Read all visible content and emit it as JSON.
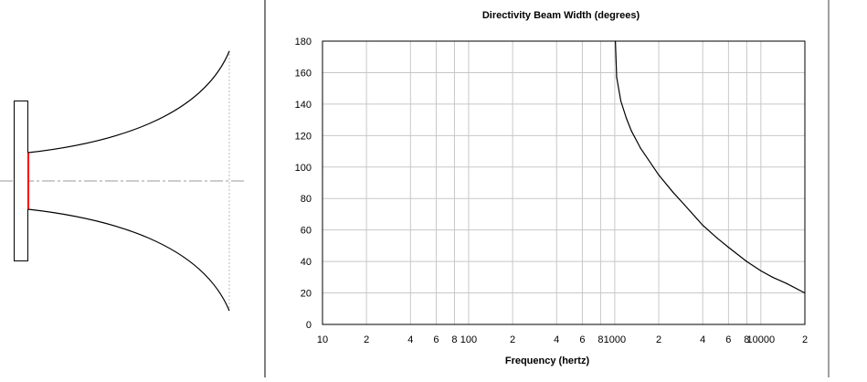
{
  "horn_diagram": {
    "throat_color": "#ff0000",
    "profile_color": "#000000",
    "axis_color": "#999999"
  },
  "chart_data": {
    "type": "line",
    "title": "Directivity Beam Width (degrees)",
    "xlabel": "Frequency (hertz)",
    "ylabel": "",
    "x_scale": "log",
    "xlim": [
      10,
      20000
    ],
    "ylim": [
      0,
      180
    ],
    "y_ticks": [
      "180",
      "160",
      "140",
      "120",
      "100",
      "80",
      "60",
      "40",
      "20",
      "0"
    ],
    "x_ticks": [
      {
        "value": 10,
        "label": "10"
      },
      {
        "value": 20,
        "label": "2"
      },
      {
        "value": 40,
        "label": "4"
      },
      {
        "value": 60,
        "label": "6"
      },
      {
        "value": 80,
        "label": "8"
      },
      {
        "value": 100,
        "label": "100"
      },
      {
        "value": 200,
        "label": "2"
      },
      {
        "value": 400,
        "label": "4"
      },
      {
        "value": 600,
        "label": "6"
      },
      {
        "value": 800,
        "label": "8"
      },
      {
        "value": 1000,
        "label": "1000"
      },
      {
        "value": 2000,
        "label": "2"
      },
      {
        "value": 4000,
        "label": "4"
      },
      {
        "value": 6000,
        "label": "6"
      },
      {
        "value": 8000,
        "label": "8"
      },
      {
        "value": 10000,
        "label": "10000"
      },
      {
        "value": 20000,
        "label": "2"
      }
    ],
    "grid": true,
    "series": [
      {
        "color": "#000000",
        "x": [
          1010,
          1030,
          1100,
          1200,
          1300,
          1500,
          2000,
          2500,
          3000,
          4000,
          5000,
          6000,
          8000,
          10000,
          12000,
          15000,
          20000
        ],
        "y": [
          180,
          157,
          142,
          131,
          123,
          112,
          95,
          84,
          76,
          63,
          55,
          49,
          40,
          34,
          30,
          26,
          20
        ]
      }
    ]
  }
}
